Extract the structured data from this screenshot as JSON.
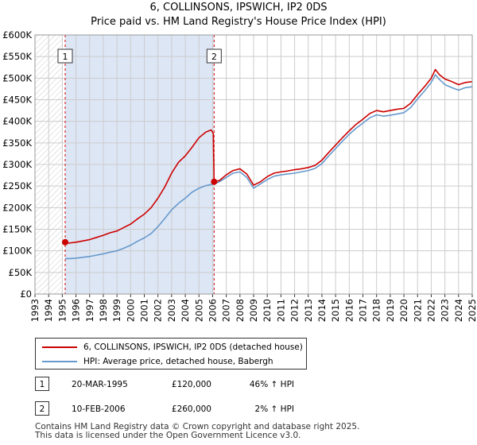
{
  "title_line1": "6, COLLINSONS, IPSWICH, IP2 0DS",
  "title_line2": "Price paid vs. HM Land Registry's House Price Index (HPI)",
  "chart_data": {
    "type": "line",
    "x_min": 1993,
    "x_max": 2025,
    "ylim": [
      0,
      600000
    ],
    "y_ticks": [
      {
        "value": 0,
        "label": "£0"
      },
      {
        "value": 50000,
        "label": "£50K"
      },
      {
        "value": 100000,
        "label": "£100K"
      },
      {
        "value": 150000,
        "label": "£150K"
      },
      {
        "value": 200000,
        "label": "£200K"
      },
      {
        "value": 250000,
        "label": "£250K"
      },
      {
        "value": 300000,
        "label": "£300K"
      },
      {
        "value": 350000,
        "label": "£350K"
      },
      {
        "value": 400000,
        "label": "£400K"
      },
      {
        "value": 450000,
        "label": "£450K"
      },
      {
        "value": 500000,
        "label": "£500K"
      },
      {
        "value": 550000,
        "label": "£550K"
      },
      {
        "value": 600000,
        "label": "£600K"
      }
    ],
    "x_ticks": [
      "1993",
      "1994",
      "1995",
      "1996",
      "1997",
      "1998",
      "1999",
      "2000",
      "2001",
      "2002",
      "2003",
      "2004",
      "2005",
      "2006",
      "2007",
      "2008",
      "2009",
      "2010",
      "2011",
      "2012",
      "2013",
      "2014",
      "2015",
      "2016",
      "2017",
      "2018",
      "2019",
      "2020",
      "2021",
      "2022",
      "2023",
      "2024",
      "2025"
    ],
    "hatched_before": 1995.0,
    "shaded_span": [
      1995.21,
      2006.11
    ],
    "series": [
      {
        "name": "6, COLLINSONS, IPSWICH, IP2 0DS (detached house)",
        "color": "#cc0000",
        "points": [
          [
            1995.21,
            120000
          ],
          [
            1995.5,
            118000
          ],
          [
            1996.0,
            120000
          ],
          [
            1996.5,
            123000
          ],
          [
            1997.0,
            126000
          ],
          [
            1997.5,
            131000
          ],
          [
            1998.0,
            136000
          ],
          [
            1998.5,
            142000
          ],
          [
            1999.0,
            146000
          ],
          [
            1999.5,
            154000
          ],
          [
            2000.0,
            162000
          ],
          [
            2000.5,
            174000
          ],
          [
            2001.0,
            185000
          ],
          [
            2001.5,
            200000
          ],
          [
            2002.0,
            222000
          ],
          [
            2002.5,
            248000
          ],
          [
            2003.0,
            280000
          ],
          [
            2003.5,
            305000
          ],
          [
            2004.0,
            320000
          ],
          [
            2004.5,
            340000
          ],
          [
            2005.0,
            362000
          ],
          [
            2005.5,
            375000
          ],
          [
            2005.9,
            380000
          ],
          [
            2006.05,
            372000
          ],
          [
            2006.11,
            260000
          ],
          [
            2006.5,
            263000
          ],
          [
            2007.0,
            276000
          ],
          [
            2007.5,
            286000
          ],
          [
            2008.0,
            290000
          ],
          [
            2008.5,
            278000
          ],
          [
            2009.0,
            252000
          ],
          [
            2009.5,
            260000
          ],
          [
            2010.0,
            272000
          ],
          [
            2010.5,
            280000
          ],
          [
            2011.0,
            283000
          ],
          [
            2011.5,
            285000
          ],
          [
            2012.0,
            288000
          ],
          [
            2012.5,
            290000
          ],
          [
            2013.0,
            293000
          ],
          [
            2013.5,
            298000
          ],
          [
            2014.0,
            310000
          ],
          [
            2014.5,
            328000
          ],
          [
            2015.0,
            345000
          ],
          [
            2015.5,
            362000
          ],
          [
            2016.0,
            378000
          ],
          [
            2016.5,
            393000
          ],
          [
            2017.0,
            405000
          ],
          [
            2017.5,
            418000
          ],
          [
            2018.0,
            425000
          ],
          [
            2018.5,
            422000
          ],
          [
            2019.0,
            425000
          ],
          [
            2019.5,
            428000
          ],
          [
            2020.0,
            430000
          ],
          [
            2020.5,
            442000
          ],
          [
            2021.0,
            462000
          ],
          [
            2021.5,
            480000
          ],
          [
            2022.0,
            500000
          ],
          [
            2022.3,
            520000
          ],
          [
            2022.6,
            508000
          ],
          [
            2023.0,
            498000
          ],
          [
            2023.5,
            492000
          ],
          [
            2024.0,
            485000
          ],
          [
            2024.5,
            490000
          ],
          [
            2025.0,
            492000
          ]
        ]
      },
      {
        "name": "HPI: Average price, detached house, Babergh",
        "color": "#6699cc",
        "points": [
          [
            1995.21,
            82000
          ],
          [
            1995.5,
            82000
          ],
          [
            1996.0,
            83000
          ],
          [
            1996.5,
            85000
          ],
          [
            1997.0,
            87000
          ],
          [
            1997.5,
            90000
          ],
          [
            1998.0,
            93000
          ],
          [
            1998.5,
            97000
          ],
          [
            1999.0,
            100000
          ],
          [
            1999.5,
            106000
          ],
          [
            2000.0,
            113000
          ],
          [
            2000.5,
            122000
          ],
          [
            2001.0,
            130000
          ],
          [
            2001.5,
            140000
          ],
          [
            2002.0,
            156000
          ],
          [
            2002.5,
            175000
          ],
          [
            2003.0,
            195000
          ],
          [
            2003.5,
            210000
          ],
          [
            2004.0,
            222000
          ],
          [
            2004.5,
            236000
          ],
          [
            2005.0,
            245000
          ],
          [
            2005.5,
            251000
          ],
          [
            2006.11,
            255000
          ],
          [
            2006.5,
            260000
          ],
          [
            2007.0,
            270000
          ],
          [
            2007.5,
            280000
          ],
          [
            2008.0,
            283000
          ],
          [
            2008.5,
            270000
          ],
          [
            2009.0,
            245000
          ],
          [
            2009.5,
            255000
          ],
          [
            2010.0,
            265000
          ],
          [
            2010.5,
            273000
          ],
          [
            2011.0,
            276000
          ],
          [
            2011.5,
            278000
          ],
          [
            2012.0,
            280000
          ],
          [
            2012.5,
            283000
          ],
          [
            2013.0,
            286000
          ],
          [
            2013.5,
            291000
          ],
          [
            2014.0,
            302000
          ],
          [
            2014.5,
            320000
          ],
          [
            2015.0,
            337000
          ],
          [
            2015.5,
            354000
          ],
          [
            2016.0,
            370000
          ],
          [
            2016.5,
            384000
          ],
          [
            2017.0,
            396000
          ],
          [
            2017.5,
            408000
          ],
          [
            2018.0,
            415000
          ],
          [
            2018.5,
            412000
          ],
          [
            2019.0,
            414000
          ],
          [
            2019.5,
            417000
          ],
          [
            2020.0,
            420000
          ],
          [
            2020.5,
            432000
          ],
          [
            2021.0,
            452000
          ],
          [
            2021.5,
            470000
          ],
          [
            2022.0,
            490000
          ],
          [
            2022.3,
            508000
          ],
          [
            2022.6,
            497000
          ],
          [
            2023.0,
            485000
          ],
          [
            2023.5,
            478000
          ],
          [
            2024.0,
            472000
          ],
          [
            2024.5,
            478000
          ],
          [
            2025.0,
            480000
          ]
        ]
      }
    ],
    "sales": [
      {
        "label": "1",
        "x": 1995.21,
        "price": 120000
      },
      {
        "label": "2",
        "x": 2006.11,
        "price": 260000
      }
    ]
  },
  "legend": {
    "property": "6, COLLINSONS, IPSWICH, IP2 0DS (detached house)",
    "hpi": "HPI: Average price, detached house, Babergh"
  },
  "transactions": [
    {
      "num": "1",
      "date": "20-MAR-1995",
      "price": "£120,000",
      "hpi": "46% ↑ HPI"
    },
    {
      "num": "2",
      "date": "10-FEB-2006",
      "price": "£260,000",
      "hpi": "2% ↑ HPI"
    }
  ],
  "footer": {
    "line1": "Contains HM Land Registry data © Crown copyright and database right 2025.",
    "line2": "This data is licensed under the Open Government Licence v3.0."
  },
  "colors": {
    "property": "#cc0000",
    "hpi": "#6699cc",
    "shade": "#dde6f5",
    "grid": "#cccccc"
  }
}
